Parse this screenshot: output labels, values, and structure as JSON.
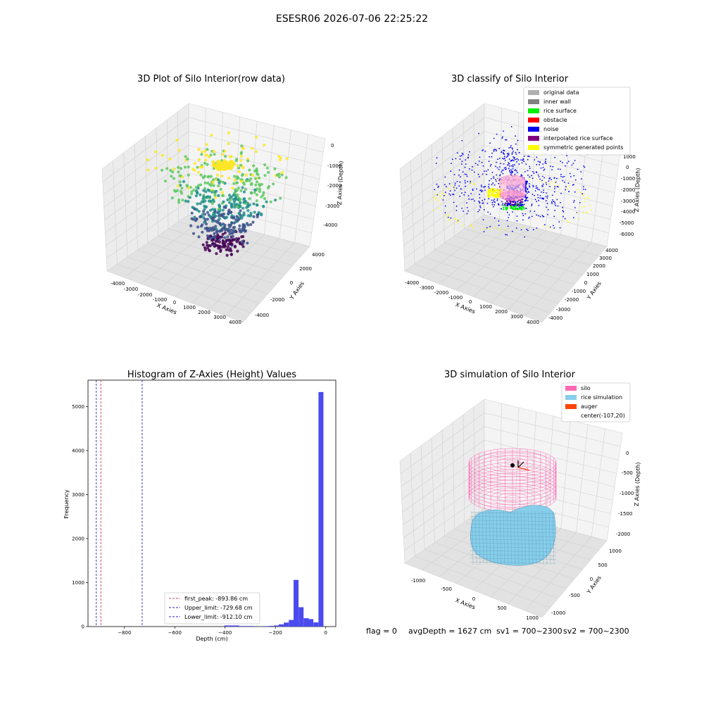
{
  "figure": {
    "suptitle": "ESESR06 2026-07-06 22:25:22",
    "footer": {
      "flag": "flag = 0",
      "avg_depth": "avgDepth = 1627 cm",
      "sv1": "sv1 = 700~2300",
      "sv2": "sv2 = 700~2300"
    }
  },
  "panels": {
    "raw": {
      "title": "3D Plot of Silo Interior(row data)",
      "xlabel": "X Axies",
      "ylabel": "Y Axies",
      "zlabel": "Z Axies (Depth)",
      "xticks": [
        "-4000",
        "-3000",
        "-2000",
        "-1000",
        "0",
        "1000",
        "2000",
        "3000",
        "4000"
      ],
      "yticks": [
        "-4000",
        "-2000",
        "0",
        "2000",
        "4000"
      ],
      "zticks": [
        "0",
        "-1000",
        "-2000",
        "-3000",
        "-4000"
      ],
      "colormap": [
        "#440154",
        "#3b528b",
        "#21918c",
        "#5ec962",
        "#fde725"
      ]
    },
    "classify": {
      "title": "3D classify of Silo Interior",
      "xlabel": "X Axies",
      "ylabel": "Y Axies",
      "zlabel": "Z Axies (Depth)",
      "xticks": [
        "-4000",
        "-3000",
        "-2000",
        "-1000",
        "0",
        "1000",
        "2000",
        "3000",
        "4000"
      ],
      "yticks": [
        "-4000",
        "-3000",
        "-2000",
        "-1000",
        "0",
        "1000",
        "2000",
        "3000",
        "4000"
      ],
      "zticks": [
        "1000",
        "0",
        "-1000",
        "-2000",
        "-3000",
        "-4000",
        "-5000",
        "-6000"
      ],
      "legend": [
        {
          "label": "original data",
          "color": "#b0b0b0"
        },
        {
          "label": "inner wall",
          "color": "#808080"
        },
        {
          "label": "rice surface",
          "color": "#00ee00"
        },
        {
          "label": "obstacle",
          "color": "#ff0000"
        },
        {
          "label": "noise",
          "color": "#0000ee"
        },
        {
          "label": "interpolated rice surface",
          "color": "#800080"
        },
        {
          "label": "symmetric generated points",
          "color": "#ffff00"
        }
      ]
    },
    "simulation": {
      "title": "3D simulation of Silo Interior",
      "xlabel": "X Axies",
      "ylabel": "Y Axies",
      "zlabel": "Z Axies (Depth)",
      "xticks": [
        "-1000",
        "-500",
        "0",
        "500",
        "1000"
      ],
      "yticks": [
        "-1000",
        "-500",
        "0",
        "500",
        "1000"
      ],
      "zticks": [
        "0",
        "-500",
        "-1000",
        "-1500",
        "-2000"
      ],
      "legend": [
        {
          "label": "silo",
          "color": "#ff69b4"
        },
        {
          "label": "rice simulation",
          "color": "#87ceeb"
        },
        {
          "label": "auger",
          "color": "#ff4500"
        },
        {
          "label": "center(-107,20)",
          "color": ""
        }
      ]
    }
  },
  "chart_data": {
    "type": "bar",
    "title": "Histogram of Z-Axies (Height) Values",
    "xlabel": "Depth (cm)",
    "ylabel": "Frequency",
    "xlim": [
      -945,
      40
    ],
    "ylim": [
      0,
      5600
    ],
    "xticks": [
      -800,
      -600,
      -400,
      -200,
      0
    ],
    "yticks": [
      0,
      1000,
      2000,
      3000,
      4000,
      5000
    ],
    "bar_color": "#4a4aee",
    "bin_width": 19.7,
    "bins": [
      {
        "x": -393,
        "count": 25
      },
      {
        "x": -373,
        "count": 25
      },
      {
        "x": -354,
        "count": 25
      },
      {
        "x": -334,
        "count": 12
      },
      {
        "x": -314,
        "count": 12
      },
      {
        "x": -295,
        "count": 12
      },
      {
        "x": -255,
        "count": 5
      },
      {
        "x": -236,
        "count": 10
      },
      {
        "x": -216,
        "count": 15
      },
      {
        "x": -196,
        "count": 25
      },
      {
        "x": -177,
        "count": 50
      },
      {
        "x": -157,
        "count": 90
      },
      {
        "x": -137,
        "count": 150
      },
      {
        "x": -118,
        "count": 1060
      },
      {
        "x": -98,
        "count": 440
      },
      {
        "x": -78,
        "count": 190
      },
      {
        "x": -59,
        "count": 170
      },
      {
        "x": -39,
        "count": 95
      },
      {
        "x": -19,
        "count": 5330
      }
    ],
    "vlines": [
      {
        "label": "first_peak: -893.86 cm",
        "x": -893.86,
        "color": "#cc3355"
      },
      {
        "label": "Upper_limit: -729.68 cm",
        "x": -729.68,
        "color": "#2222cc"
      },
      {
        "label": "Lower_limit: -912.10 cm",
        "x": -912.1,
        "color": "#2222cc"
      }
    ]
  }
}
